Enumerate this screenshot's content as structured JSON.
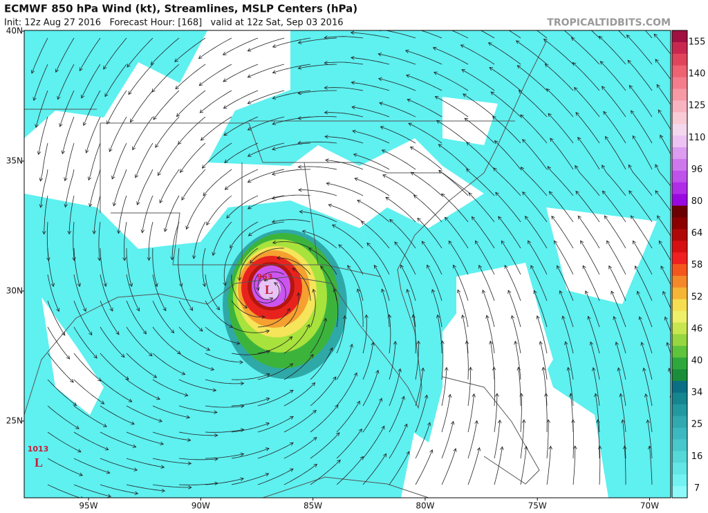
{
  "header": {
    "title": "ECMWF 850 hPa Wind (kt), Streamlines, MSLP Centers (hPa)",
    "subtitle": "Init: 12z Aug 27 2016   Forecast Hour: [168]   valid at 12z Sat, Sep 03 2016",
    "credit": "TROPICALTIDBITS.COM"
  },
  "map": {
    "lat_labels": [
      "40N",
      "35N",
      "30N",
      "25N"
    ],
    "lon_labels": [
      "95W",
      "90W",
      "85W",
      "80W",
      "75W",
      "70W"
    ],
    "centers": [
      {
        "pressure": "963",
        "symbol": "L"
      },
      {
        "pressure": "1013",
        "symbol": "L"
      }
    ]
  },
  "colorbar": {
    "labels": [
      155,
      140,
      125,
      110,
      96,
      80,
      64,
      58,
      52,
      46,
      40,
      34,
      25,
      16,
      7
    ]
  }
}
